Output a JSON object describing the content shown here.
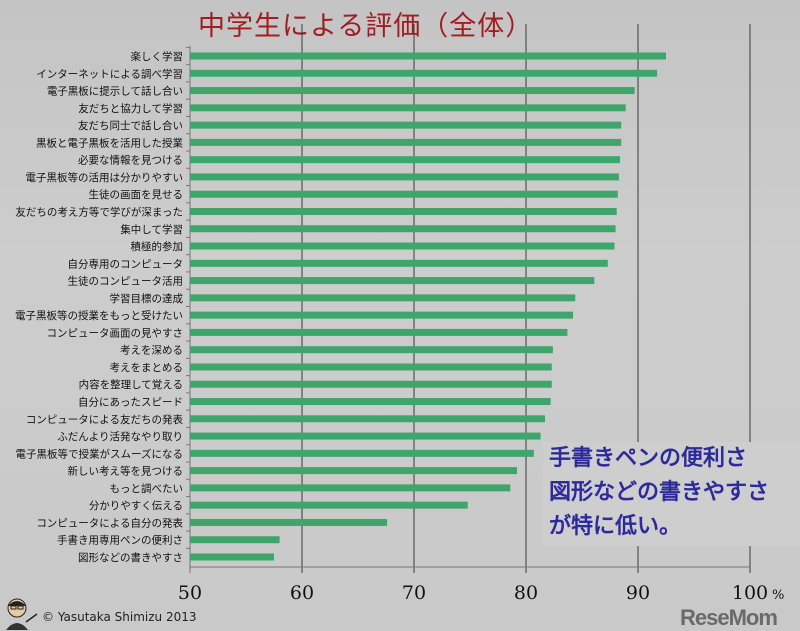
{
  "chart_data": {
    "type": "bar",
    "orientation": "horizontal",
    "title": "中学生による評価（全体）",
    "xlabel": "",
    "x_unit": "%",
    "xlim": [
      50,
      100
    ],
    "xticks": [
      "50",
      "60",
      "70",
      "80",
      "90",
      "100"
    ],
    "grid": true,
    "bar_color": "#3fa66b",
    "categories": [
      "楽しく学習",
      "インターネットによる調べ学習",
      "電子黒板に提示して話し合い",
      "友だちと協力して学習",
      "友だち同士で話し合い",
      "黒板と電子黒板を活用した授業",
      "必要な情報を見つける",
      "電子黒板等の活用は分かりやすい",
      "生徒の画面を見せる",
      "友だちの考え方等で学びが深まった",
      "集中して学習",
      "積極的参加",
      "自分専用のコンピュータ",
      "生徒のコンピュータ活用",
      "学習目標の達成",
      "電子黒板等の授業をもっと受けたい",
      "コンピュータ画面の見やすさ",
      "考えを深める",
      "考えをまとめる",
      "内容を整理して覚える",
      "自分にあったスピード",
      "コンピュータによる友だちの発表",
      "ふだんより活発なやり取り",
      "電子黒板等で授業がスムーズになる",
      "新しい考え等を見つける",
      "もっと調べたい",
      "分かりやすく伝える",
      "コンピュータによる自分の発表",
      "手書き用専用ペンの便利さ",
      "図形などの書きやすさ"
    ],
    "values": [
      92.5,
      91.7,
      89.7,
      88.9,
      88.5,
      88.5,
      88.4,
      88.3,
      88.2,
      88.1,
      88.0,
      87.9,
      87.3,
      86.1,
      84.4,
      84.2,
      83.7,
      82.4,
      82.3,
      82.3,
      82.2,
      81.7,
      81.3,
      80.7,
      79.2,
      78.6,
      74.8,
      67.6,
      58.0,
      57.5
    ]
  },
  "annotation": {
    "lines": [
      "手書きペンの便利さ",
      "図形などの書きやすさ",
      "が特に低い。"
    ],
    "color": "#2d2a9c"
  },
  "title_color": "#a31c20",
  "copyright": "© Yasutaka Shimizu 2013",
  "watermark": "ReseMom",
  "avatar_icon": "presenter-icon"
}
